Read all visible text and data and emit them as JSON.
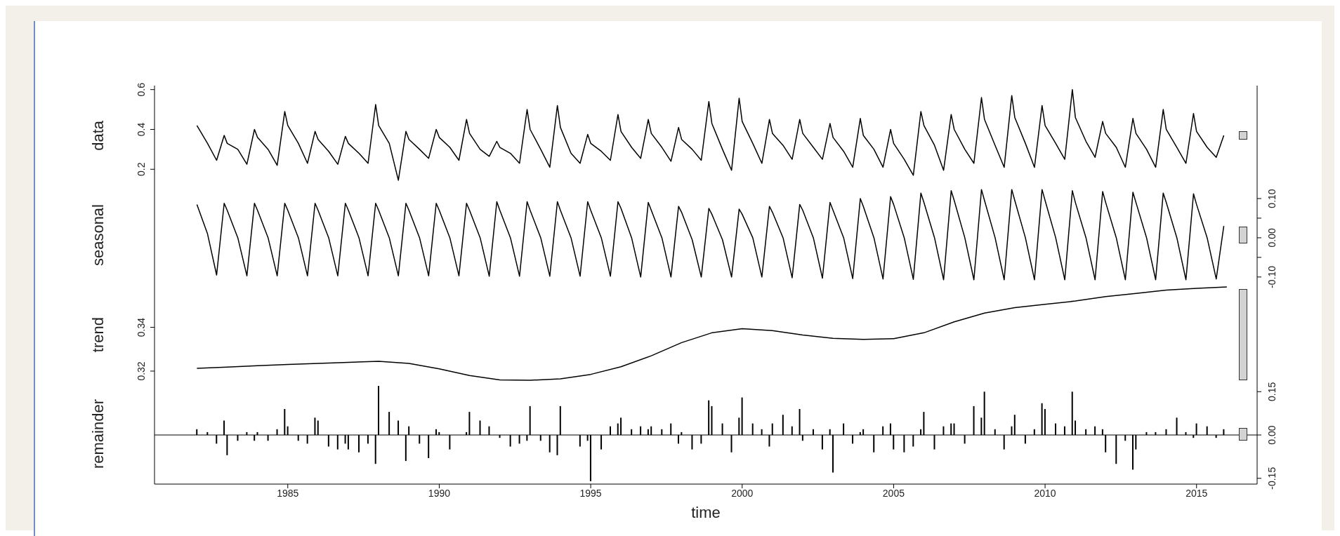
{
  "chart_data": [
    {
      "type": "line",
      "ylabel": "data",
      "xlim": [
        1980.6,
        2017.0
      ],
      "ylim": [
        0.12,
        0.62
      ],
      "yticks": [
        0.2,
        0.4,
        0.6
      ],
      "tick_labels": "y",
      "x": [
        1982,
        1982.35,
        1982.65,
        1982.9,
        1983,
        1983.35,
        1983.65,
        1983.9,
        1984,
        1984.35,
        1984.65,
        1984.9,
        1985,
        1985.35,
        1985.65,
        1985.9,
        1986,
        1986.35,
        1986.65,
        1986.9,
        1987,
        1987.35,
        1987.65,
        1987.9,
        1988,
        1988.35,
        1988.65,
        1988.9,
        1989,
        1989.35,
        1989.65,
        1989.9,
        1990,
        1990.35,
        1990.65,
        1990.9,
        1991,
        1991.35,
        1991.65,
        1991.9,
        1992,
        1992.35,
        1992.65,
        1992.9,
        1993,
        1993.35,
        1993.65,
        1993.9,
        1994,
        1994.35,
        1994.65,
        1994.9,
        1995,
        1995.35,
        1995.65,
        1995.9,
        1996,
        1996.35,
        1996.65,
        1996.9,
        1997,
        1997.35,
        1997.65,
        1997.9,
        1998,
        1998.35,
        1998.65,
        1998.9,
        1999,
        1999.35,
        1999.65,
        1999.9,
        2000,
        2000.35,
        2000.65,
        2000.9,
        2001,
        2001.35,
        2001.65,
        2001.9,
        2002,
        2002.35,
        2002.65,
        2002.9,
        2003,
        2003.35,
        2003.65,
        2003.9,
        2004,
        2004.35,
        2004.65,
        2004.9,
        2005,
        2005.35,
        2005.65,
        2005.9,
        2006,
        2006.35,
        2006.65,
        2006.9,
        2007,
        2007.35,
        2007.65,
        2007.9,
        2008,
        2008.35,
        2008.65,
        2008.9,
        2009,
        2009.35,
        2009.65,
        2009.9,
        2010,
        2010.35,
        2010.65,
        2010.9,
        2011,
        2011.35,
        2011.65,
        2011.9,
        2012,
        2012.35,
        2012.65,
        2012.9,
        2013,
        2013.35,
        2013.65,
        2013.9,
        2014,
        2014.35,
        2014.65,
        2014.9,
        2015,
        2015.35,
        2015.65,
        2015.9
      ],
      "series": [
        {
          "color": "#000000",
          "values": [
            0.42,
            0.33,
            0.245,
            0.37,
            0.33,
            0.3,
            0.225,
            0.4,
            0.36,
            0.3,
            0.22,
            0.49,
            0.42,
            0.33,
            0.23,
            0.39,
            0.35,
            0.29,
            0.225,
            0.365,
            0.33,
            0.28,
            0.23,
            0.525,
            0.42,
            0.33,
            0.145,
            0.39,
            0.35,
            0.3,
            0.255,
            0.4,
            0.36,
            0.31,
            0.245,
            0.45,
            0.38,
            0.3,
            0.265,
            0.34,
            0.31,
            0.28,
            0.23,
            0.5,
            0.4,
            0.3,
            0.21,
            0.52,
            0.41,
            0.28,
            0.23,
            0.375,
            0.33,
            0.29,
            0.245,
            0.475,
            0.39,
            0.31,
            0.255,
            0.45,
            0.38,
            0.31,
            0.24,
            0.41,
            0.35,
            0.3,
            0.245,
            0.54,
            0.43,
            0.3,
            0.195,
            0.557,
            0.44,
            0.33,
            0.23,
            0.45,
            0.38,
            0.32,
            0.25,
            0.45,
            0.38,
            0.31,
            0.25,
            0.43,
            0.36,
            0.29,
            0.21,
            0.455,
            0.37,
            0.3,
            0.21,
            0.4,
            0.33,
            0.25,
            0.17,
            0.49,
            0.42,
            0.32,
            0.195,
            0.475,
            0.4,
            0.3,
            0.23,
            0.56,
            0.45,
            0.32,
            0.21,
            0.57,
            0.46,
            0.33,
            0.21,
            0.52,
            0.42,
            0.33,
            0.25,
            0.6,
            0.46,
            0.34,
            0.26,
            0.44,
            0.38,
            0.31,
            0.21,
            0.455,
            0.38,
            0.3,
            0.21,
            0.5,
            0.4,
            0.31,
            0.23,
            0.48,
            0.39,
            0.31,
            0.26,
            0.37
          ]
        }
      ]
    },
    {
      "type": "line",
      "ylabel": "seasonal",
      "xlim": [
        1980.6,
        2017.0
      ],
      "y2lim": [
        -0.12,
        0.134
      ],
      "y2ticks": [
        {
          "value": 0.1,
          "label": "0.10"
        },
        {
          "value": 0.05,
          "label": null
        },
        {
          "value": 0,
          "label": "0.00"
        },
        {
          "value": -0.05,
          "label": null
        },
        {
          "value": -0.1,
          "label": "-0.10"
        }
      ],
      "tick_labels": "y2",
      "x": [
        1982,
        1982.35,
        1982.65,
        1982.9,
        1983,
        1983.35,
        1983.65,
        1983.9,
        1984,
        1984.35,
        1984.65,
        1984.9,
        1985,
        1985.35,
        1985.65,
        1985.9,
        1986,
        1986.35,
        1986.65,
        1986.9,
        1987,
        1987.35,
        1987.65,
        1987.9,
        1988,
        1988.35,
        1988.65,
        1988.9,
        1989,
        1989.35,
        1989.65,
        1989.9,
        1990,
        1990.35,
        1990.65,
        1990.9,
        1991,
        1991.35,
        1991.65,
        1991.9,
        1992,
        1992.35,
        1992.65,
        1992.9,
        1993,
        1993.35,
        1993.65,
        1993.9,
        1994,
        1994.35,
        1994.65,
        1994.9,
        1995,
        1995.35,
        1995.65,
        1995.9,
        1996,
        1996.35,
        1996.65,
        1996.9,
        1997,
        1997.35,
        1997.65,
        1997.9,
        1998,
        1998.35,
        1998.65,
        1998.9,
        1999,
        1999.35,
        1999.65,
        1999.9,
        2000,
        2000.35,
        2000.65,
        2000.9,
        2001,
        2001.35,
        2001.65,
        2001.9,
        2002,
        2002.35,
        2002.65,
        2002.9,
        2003,
        2003.35,
        2003.65,
        2003.9,
        2004,
        2004.35,
        2004.65,
        2004.9,
        2005,
        2005.35,
        2005.65,
        2005.9,
        2006,
        2006.35,
        2006.65,
        2006.9,
        2007,
        2007.35,
        2007.65,
        2007.9,
        2008,
        2008.35,
        2008.65,
        2008.9,
        2009,
        2009.35,
        2009.65,
        2009.9,
        2010,
        2010.35,
        2010.65,
        2010.9,
        2011,
        2011.35,
        2011.65,
        2011.9,
        2012,
        2012.35,
        2012.65,
        2012.9,
        2013,
        2013.35,
        2013.65,
        2013.9,
        2014,
        2014.35,
        2014.65,
        2014.9,
        2015,
        2015.35,
        2015.65,
        2015.9
      ],
      "series": [
        {
          "color": "#000000",
          "axis": "y2",
          "values": [
            0.085,
            0.01,
            -0.095,
            0.088,
            0.07,
            0,
            -0.097,
            0.088,
            0.07,
            0,
            -0.097,
            0.088,
            0.07,
            0,
            -0.097,
            0.088,
            0.07,
            0,
            -0.097,
            0.088,
            0.07,
            0,
            -0.097,
            0.088,
            0.07,
            0,
            -0.097,
            0.088,
            0.07,
            0,
            -0.097,
            0.088,
            0.07,
            0,
            -0.097,
            0.088,
            0.07,
            0,
            -0.098,
            0.092,
            0.07,
            0,
            -0.098,
            0.092,
            0.07,
            0,
            -0.098,
            0.092,
            0.07,
            0,
            -0.098,
            0.092,
            0.07,
            0,
            -0.098,
            0.092,
            0.075,
            0,
            -0.1,
            0.09,
            0.07,
            0,
            -0.1,
            0.08,
            0.065,
            -0.005,
            -0.1,
            0.075,
            0.06,
            -0.005,
            -0.1,
            0.073,
            0.06,
            0,
            -0.1,
            0.08,
            0.065,
            0,
            -0.102,
            0.085,
            0.07,
            0,
            -0.103,
            0.09,
            0.07,
            0,
            -0.104,
            0.1,
            0.08,
            0,
            -0.105,
            0.105,
            0.085,
            0,
            -0.106,
            0.114,
            0.09,
            0,
            -0.107,
            0.12,
            0.095,
            0,
            -0.107,
            0.123,
            0.095,
            0,
            -0.107,
            0.123,
            0.095,
            0,
            -0.107,
            0.123,
            0.095,
            0,
            -0.107,
            0.12,
            0.09,
            0,
            -0.107,
            0.118,
            0.09,
            0,
            -0.107,
            0.116,
            0.09,
            0,
            -0.107,
            0.114,
            0.09,
            0,
            -0.107,
            0.112,
            0.085,
            0,
            -0.105,
            0.03
          ]
        }
      ]
    },
    {
      "type": "line",
      "ylabel": "trend",
      "xlim": [
        1980.6,
        2017.0
      ],
      "ylim": [
        0.3139,
        0.3594
      ],
      "yticks": [
        0.32,
        0.34
      ],
      "tick_labels": "y",
      "x": [
        1982,
        1983,
        1984,
        1985,
        1986,
        1987,
        1988,
        1989,
        1990,
        1991,
        1992,
        1993,
        1994,
        1995,
        1996,
        1997,
        1998,
        1999,
        2000,
        2001,
        2002,
        2003,
        2004,
        2005,
        2006,
        2007,
        2008,
        2009,
        2010,
        2011,
        2012,
        2013,
        2014,
        2015,
        2016
      ],
      "series": [
        {
          "color": "#000000",
          "values": [
            0.3213,
            0.3218,
            0.3225,
            0.323,
            0.3235,
            0.324,
            0.3245,
            0.3235,
            0.321,
            0.318,
            0.316,
            0.3158,
            0.3165,
            0.3185,
            0.322,
            0.327,
            0.333,
            0.3375,
            0.3394,
            0.3385,
            0.3365,
            0.335,
            0.3345,
            0.3348,
            0.3375,
            0.3425,
            0.3465,
            0.349,
            0.3505,
            0.352,
            0.354,
            0.3555,
            0.357,
            0.3578,
            0.3584
          ]
        }
      ]
    },
    {
      "type": "bar",
      "ylabel": "remainder",
      "xlabel": "time",
      "xlim": [
        1980.6,
        2017.0
      ],
      "xticks": [
        1985,
        1990,
        1995,
        2000,
        2005,
        2010,
        2015
      ],
      "y2lim": [
        -0.17,
        0.175
      ],
      "y2ticks": [
        {
          "value": 0.15,
          "label": "0.15"
        },
        {
          "value": 0,
          "label": "0.00"
        },
        {
          "value": -0.15,
          "label": "-0.15"
        }
      ],
      "ref_lines": [
        {
          "axis": "y2",
          "value": 0,
          "color": "#000000"
        }
      ],
      "x": [
        1982,
        1982.35,
        1982.65,
        1982.9,
        1983,
        1983.35,
        1983.65,
        1983.9,
        1984,
        1984.35,
        1984.65,
        1984.9,
        1985,
        1985.35,
        1985.65,
        1985.9,
        1986,
        1986.35,
        1986.65,
        1986.9,
        1987,
        1987.35,
        1987.65,
        1987.9,
        1988,
        1988.35,
        1988.65,
        1988.9,
        1989,
        1989.35,
        1989.65,
        1989.9,
        1990,
        1990.35,
        1990.65,
        1990.9,
        1991,
        1991.35,
        1991.65,
        1991.9,
        1992,
        1992.35,
        1992.65,
        1992.9,
        1993,
        1993.35,
        1993.65,
        1993.9,
        1994,
        1994.35,
        1994.65,
        1994.9,
        1995,
        1995.35,
        1995.65,
        1995.9,
        1996,
        1996.35,
        1996.65,
        1996.9,
        1997,
        1997.35,
        1997.65,
        1997.9,
        1998,
        1998.35,
        1998.65,
        1998.9,
        1999,
        1999.35,
        1999.65,
        1999.9,
        2000,
        2000.35,
        2000.65,
        2000.9,
        2001,
        2001.35,
        2001.65,
        2001.9,
        2002,
        2002.35,
        2002.65,
        2002.9,
        2003,
        2003.35,
        2003.65,
        2003.9,
        2004,
        2004.35,
        2004.65,
        2004.9,
        2005,
        2005.35,
        2005.65,
        2005.9,
        2006,
        2006.35,
        2006.65,
        2006.9,
        2007,
        2007.35,
        2007.65,
        2007.9,
        2008,
        2008.35,
        2008.65,
        2008.9,
        2009,
        2009.35,
        2009.65,
        2009.9,
        2010,
        2010.35,
        2010.65,
        2010.9,
        2011,
        2011.35,
        2011.65,
        2011.9,
        2012,
        2012.35,
        2012.65,
        2012.9,
        2013,
        2013.35,
        2013.65,
        2013.9,
        2014,
        2014.35,
        2014.65,
        2014.9,
        2015,
        2015.35,
        2015.65,
        2015.9
      ],
      "series": [
        {
          "color": "#000000",
          "axis": "y2",
          "values": [
            0.02,
            0.01,
            -0.03,
            0.05,
            -0.07,
            -0.02,
            0.01,
            -0.02,
            0.01,
            -0.02,
            0.02,
            0.09,
            0.03,
            -0.02,
            -0.03,
            0.06,
            0.05,
            -0.04,
            -0.05,
            -0.03,
            -0.05,
            -0.06,
            -0.03,
            -0.1,
            0.17,
            0.08,
            0.05,
            -0.09,
            0.03,
            -0.03,
            -0.08,
            0.02,
            0.01,
            -0.05,
            0,
            0.01,
            0.08,
            0.05,
            0.03,
            0,
            -0.01,
            -0.04,
            -0.03,
            -0.02,
            0.1,
            -0.02,
            -0.06,
            -0.07,
            0.1,
            0,
            -0.04,
            -0.02,
            -0.16,
            -0.05,
            0.03,
            0.04,
            0.06,
            0.02,
            0.03,
            0.02,
            0.03,
            0.02,
            0.04,
            -0.03,
            0.01,
            -0.05,
            -0.03,
            0.12,
            0.1,
            0.04,
            -0.06,
            0.06,
            0.13,
            0.04,
            0.02,
            -0.04,
            0.04,
            0.07,
            0.03,
            0.09,
            -0.02,
            0.02,
            -0.05,
            0.02,
            -0.13,
            0.04,
            -0.03,
            0.01,
            0.02,
            -0.06,
            0.03,
            0.04,
            -0.05,
            -0.06,
            -0.04,
            0.02,
            0.08,
            -0.05,
            0.03,
            0.04,
            0.04,
            -0.03,
            0.1,
            0.06,
            0.15,
            0.02,
            -0.05,
            0.03,
            0.07,
            -0.03,
            0.02,
            0.11,
            0.09,
            0.04,
            0.03,
            0.15,
            0.05,
            0.02,
            0.03,
            0.02,
            -0.06,
            -0.1,
            -0.02,
            -0.12,
            -0.05,
            0.01,
            0.01,
            0,
            0.02,
            0.06,
            0.01,
            -0.01,
            0.04,
            0.03,
            -0.01,
            0.02
          ]
        }
      ]
    }
  ]
}
